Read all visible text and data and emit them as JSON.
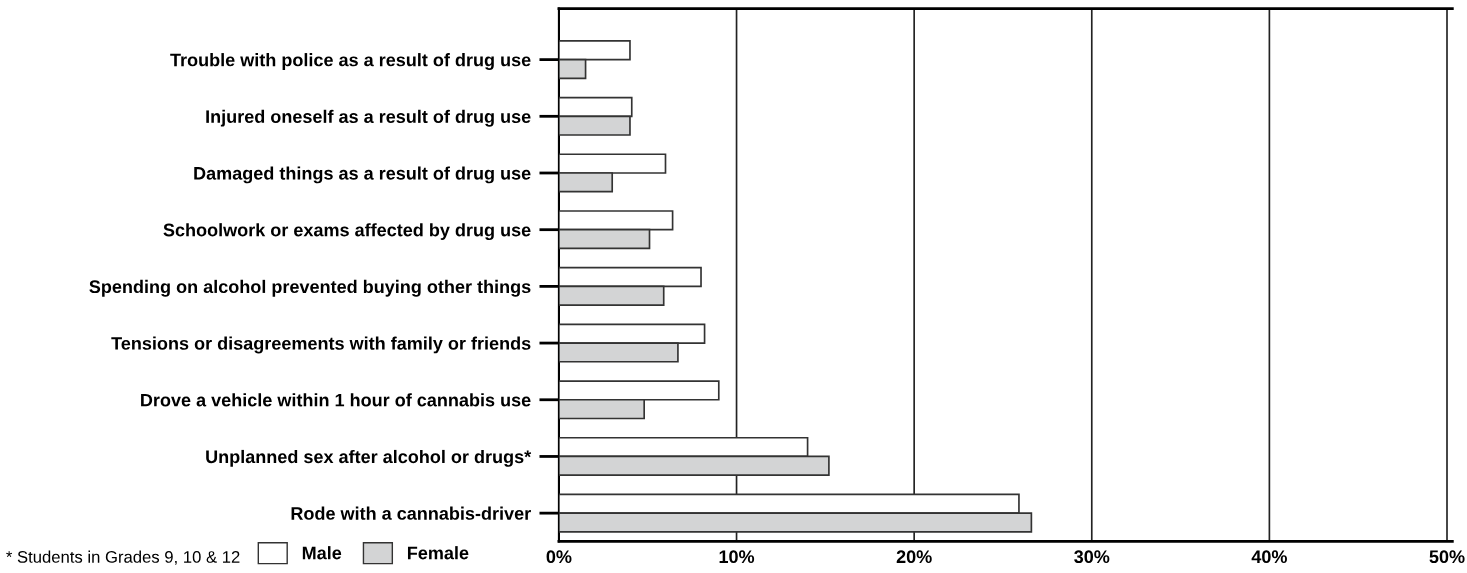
{
  "chart_data": {
    "type": "bar",
    "orientation": "horizontal",
    "categories": [
      "Trouble with police as a result of drug use",
      "Injured oneself as a result of drug use",
      "Damaged things as a result of drug use",
      "Schoolwork or exams affected by drug use",
      "Spending on alcohol prevented buying other things",
      "Tensions or disagreements with family or friends",
      "Drove a vehicle within 1 hour of cannabis use",
      "Unplanned sex after alcohol or drugs*",
      "Rode with a cannabis-driver"
    ],
    "series": [
      {
        "name": "Male",
        "color": "#ffffff",
        "values": [
          4.0,
          4.1,
          6.0,
          6.4,
          8.0,
          8.2,
          9.0,
          14.0,
          25.9
        ]
      },
      {
        "name": "Female",
        "color": "#d3d4d5",
        "values": [
          1.5,
          4.0,
          3.0,
          5.1,
          5.9,
          6.7,
          4.8,
          15.2,
          26.6
        ]
      }
    ],
    "xlim": [
      0,
      50.3
    ],
    "xticks": [
      {
        "value": 0,
        "label": "0%"
      },
      {
        "value": 10,
        "label": "10%"
      },
      {
        "value": 20,
        "label": "20%"
      },
      {
        "value": 30,
        "label": "30%"
      },
      {
        "value": 40,
        "label": "40%"
      },
      {
        "value": 50,
        "label": "50%"
      }
    ],
    "grid": "x",
    "legend": "bottom left",
    "annotations": [
      "* Students in Grades 9, 10 & 12"
    ]
  }
}
